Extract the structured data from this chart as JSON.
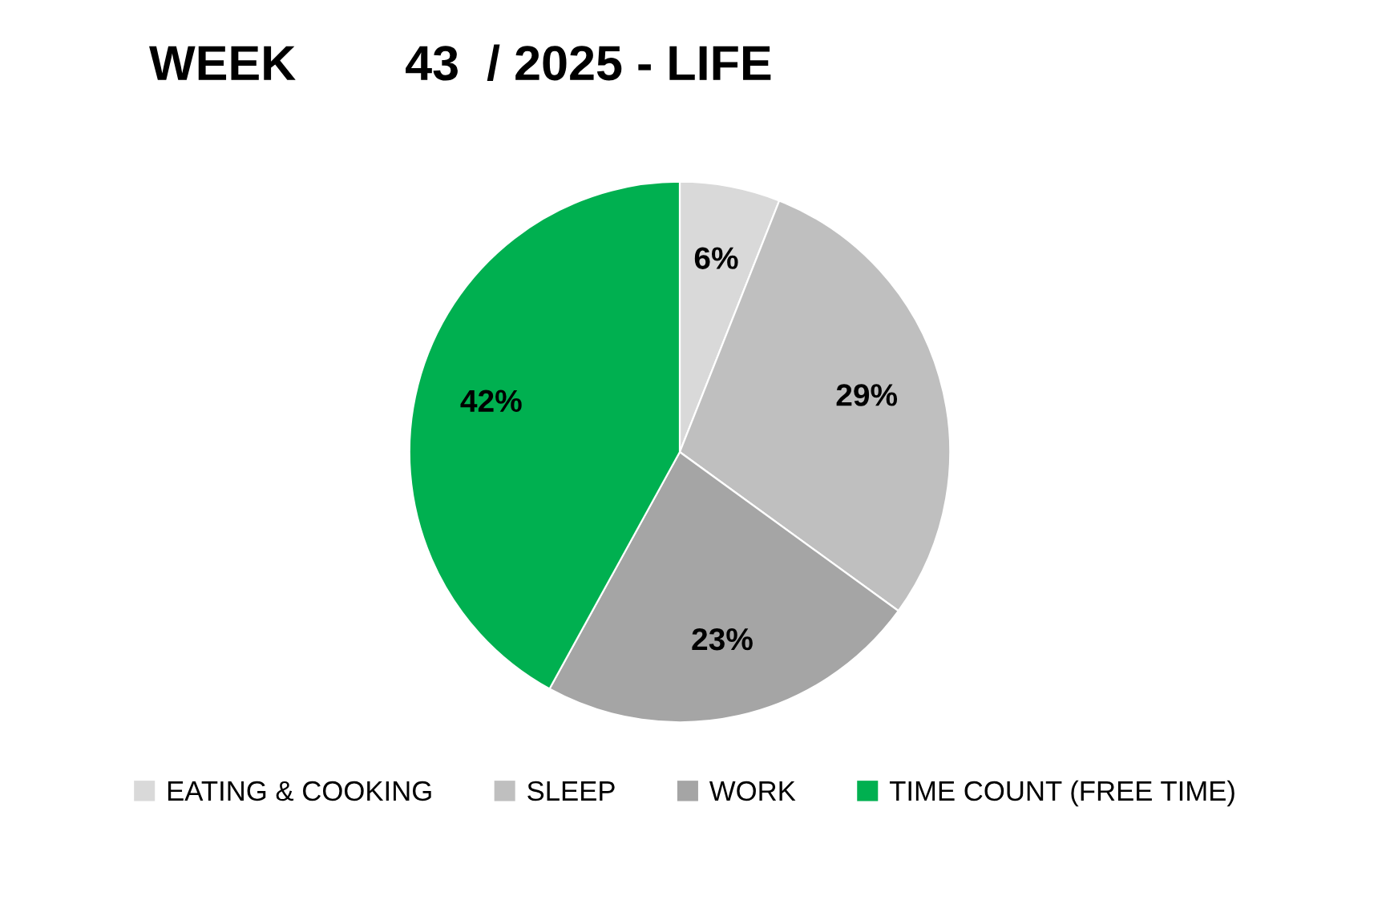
{
  "chart_data": {
    "type": "pie",
    "title": "WEEK        43  / 2025 - LIFE",
    "categories": [
      "EATING & COOKING",
      "SLEEP",
      "WORK",
      "TIME COUNT (FREE TIME)"
    ],
    "values": [
      6,
      29,
      23,
      42
    ],
    "colors": [
      "#d9d9d9",
      "#bfbfbf",
      "#a5a5a5",
      "#00b050"
    ],
    "value_labels": [
      "6%",
      "29%",
      "23%",
      "42%"
    ],
    "legend": "bottom"
  }
}
